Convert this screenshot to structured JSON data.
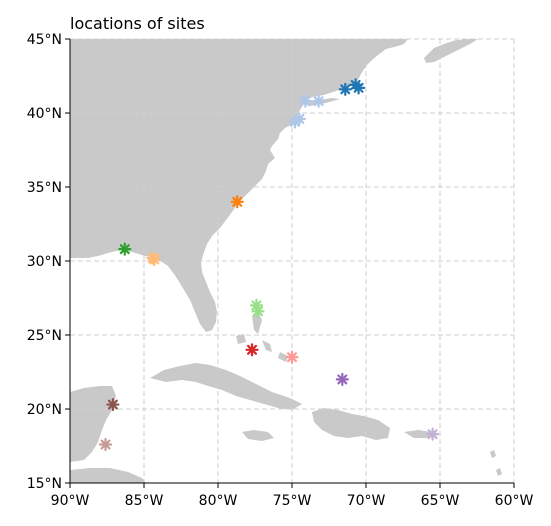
{
  "title": "locations of sites",
  "colors": {
    "land": "#c9c9c9",
    "grid": "#cfcfcf",
    "axis": "#000000"
  },
  "chart_data": {
    "type": "scatter",
    "projection": "plate-carree",
    "xlim": [
      -90,
      -60
    ],
    "ylim": [
      15,
      45
    ],
    "grid": true,
    "grid_style": "dashed",
    "marker": "asterisk",
    "x_ticks": [
      {
        "value": -90,
        "label": "90°W"
      },
      {
        "value": -85,
        "label": "85°W"
      },
      {
        "value": -80,
        "label": "80°W"
      },
      {
        "value": -75,
        "label": "75°W"
      },
      {
        "value": -70,
        "label": "70°W"
      },
      {
        "value": -65,
        "label": "65°W"
      },
      {
        "value": -60,
        "label": "60°W"
      }
    ],
    "y_ticks": [
      {
        "value": 15,
        "label": "15°N"
      },
      {
        "value": 20,
        "label": "20°N"
      },
      {
        "value": 25,
        "label": "25°N"
      },
      {
        "value": 30,
        "label": "30°N"
      },
      {
        "value": 35,
        "label": "35°N"
      },
      {
        "value": 40,
        "label": "40°N"
      },
      {
        "value": 45,
        "label": "45°N"
      }
    ],
    "sites": [
      {
        "lon": -70.7,
        "lat": 41.9,
        "color": "#1f77b4"
      },
      {
        "lon": -71.4,
        "lat": 41.6,
        "color": "#1f77b4"
      },
      {
        "lon": -70.5,
        "lat": 41.7,
        "color": "#1f77b4"
      },
      {
        "lon": -73.2,
        "lat": 40.8,
        "color": "#aec7e8"
      },
      {
        "lon": -74.1,
        "lat": 40.8,
        "color": "#aec7e8"
      },
      {
        "lon": -74.5,
        "lat": 39.6,
        "color": "#aec7e8"
      },
      {
        "lon": -74.8,
        "lat": 39.4,
        "color": "#aec7e8"
      },
      {
        "lon": -78.7,
        "lat": 34.0,
        "color": "#ff7f0e"
      },
      {
        "lon": -84.4,
        "lat": 30.2,
        "color": "#ffbb78"
      },
      {
        "lon": -84.3,
        "lat": 30.1,
        "color": "#ffbb78"
      },
      {
        "lon": -86.3,
        "lat": 30.8,
        "color": "#2ca02c"
      },
      {
        "lon": -77.4,
        "lat": 27.0,
        "color": "#98df8a"
      },
      {
        "lon": -77.3,
        "lat": 26.6,
        "color": "#98df8a"
      },
      {
        "lon": -77.7,
        "lat": 24.0,
        "color": "#d62728"
      },
      {
        "lon": -75.0,
        "lat": 23.5,
        "color": "#ff9896"
      },
      {
        "lon": -71.6,
        "lat": 22.0,
        "color": "#9467bd"
      },
      {
        "lon": -65.5,
        "lat": 18.3,
        "color": "#c5b0d5"
      },
      {
        "lon": -87.1,
        "lat": 20.3,
        "color": "#8c564b"
      },
      {
        "lon": -87.6,
        "lat": 17.6,
        "color": "#c49c94"
      }
    ]
  }
}
